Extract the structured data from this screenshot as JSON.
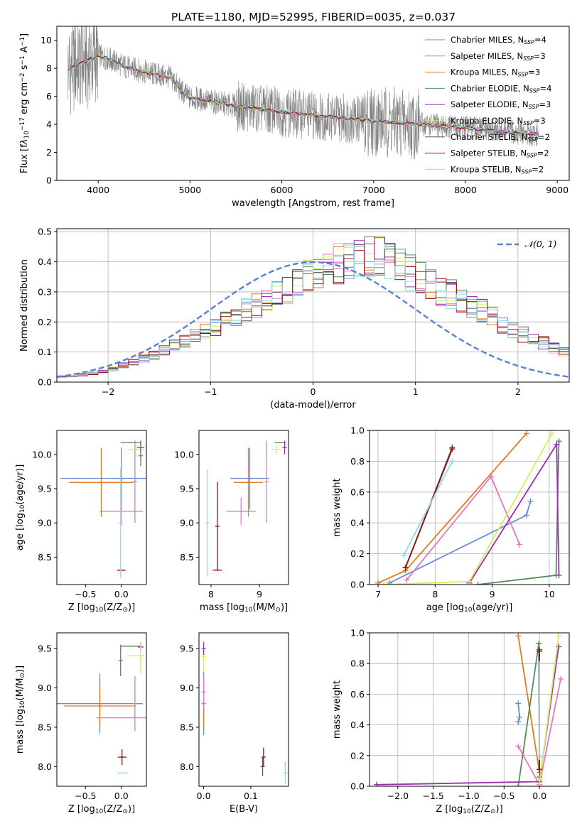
{
  "title": "PLATE=1180, MJD=52995, FIBERID=0035, z=0.037",
  "colors": {
    "spectrum": "#808080",
    "Chabrier MILES": "#6a8cd9",
    "Salpeter MILES": "#e377c2",
    "Kroupa MILES": "#e07b23",
    "Chabrier ELODIE": "#5a8a5a",
    "Salpeter ELODIE": "#9b30b3",
    "Kroupa ELODIE": "#d4ee5e",
    "Chabrier STELIB": "#555555",
    "Salpeter STELIB": "#9a1010",
    "Kroupa STELIB": "#8ddde6",
    "normal": "#5b7fd6",
    "grid": "#b0b0b0"
  },
  "chart_data": [
    {
      "type": "line",
      "title": "PLATE=1180, MJD=52995, FIBERID=0035, z=0.037",
      "xlabel": "wavelength [Angstrom, rest frame]",
      "ylabel_parts": [
        "Flux [",
        "f",
        "λ",
        "10",
        "−17",
        " erg cm",
        "−2",
        " s",
        "−1",
        " A",
        "−1",
        "]"
      ],
      "xlim": [
        3550,
        9130
      ],
      "ylim": [
        0,
        11
      ],
      "xticks": [
        4000,
        5000,
        6000,
        7000,
        8000,
        9000
      ],
      "xtick_labels": [
        "4000",
        "5000",
        "6000",
        "7000",
        "8000",
        "9000"
      ],
      "yticks": [
        0,
        2,
        4,
        6,
        8,
        10
      ],
      "ytick_labels": [
        "0",
        "2",
        "4",
        "6",
        "8",
        "10"
      ],
      "continuum_model": {
        "x": [
          3670,
          3900,
          4000,
          4100,
          4300,
          4600,
          4800,
          4900,
          5000,
          5500,
          6000,
          6500,
          7000,
          7500,
          8000,
          8500,
          8800
        ],
        "y": [
          8.0,
          8.6,
          8.9,
          8.7,
          8.1,
          7.6,
          7.3,
          6.4,
          5.9,
          5.3,
          4.9,
          4.55,
          4.25,
          4.0,
          3.75,
          3.45,
          3.3
        ]
      },
      "legend": [
        {
          "base": "Chabrier MILES, N",
          "sub": "SSP",
          "tail": "=4"
        },
        {
          "base": "Salpeter MILES, N",
          "sub": "SSP",
          "tail": "=3"
        },
        {
          "base": "Kroupa MILES, N",
          "sub": "SSP",
          "tail": "=3"
        },
        {
          "base": "Chabrier ELODIE, N",
          "sub": "SSP",
          "tail": "=4"
        },
        {
          "base": "Salpeter ELODIE, N",
          "sub": "SSP",
          "tail": "=3"
        },
        {
          "base": "Kroupa ELODIE, N",
          "sub": "SSP",
          "tail": "=3"
        },
        {
          "base": "Chabrier STELIB, N",
          "sub": "SSP",
          "tail": "=2"
        },
        {
          "base": "Salpeter STELIB, N",
          "sub": "SSP",
          "tail": "=2"
        },
        {
          "base": "Kroupa STELIB, N",
          "sub": "SSP",
          "tail": "=2"
        }
      ],
      "legend_placement": "upper right"
    },
    {
      "type": "step",
      "xlabel": "(data-model)/error",
      "ylabel": "Normed distribution",
      "xlim": [
        -2.5,
        2.5
      ],
      "ylim": [
        0,
        0.51
      ],
      "xticks": [
        -2,
        -1,
        0,
        1,
        2
      ],
      "xtick_labels": [
        "−2",
        "−1",
        "0",
        "1",
        "2"
      ],
      "yticks": [
        0,
        0.1,
        0.2,
        0.3,
        0.4,
        0.5
      ],
      "ytick_labels": [
        "0.0",
        "0.1",
        "0.2",
        "0.3",
        "0.4",
        "0.5"
      ],
      "grid": true,
      "bin_width": 0.1,
      "histogram_base": [
        0.018,
        0.02,
        0.025,
        0.03,
        0.035,
        0.045,
        0.055,
        0.065,
        0.08,
        0.09,
        0.105,
        0.12,
        0.135,
        0.15,
        0.165,
        0.18,
        0.2,
        0.22,
        0.24,
        0.255,
        0.27,
        0.285,
        0.305,
        0.325,
        0.345,
        0.36,
        0.38,
        0.395,
        0.41,
        0.42,
        0.42,
        0.41,
        0.395,
        0.38,
        0.36,
        0.345,
        0.325,
        0.305,
        0.29,
        0.27,
        0.255,
        0.235,
        0.215,
        0.195,
        0.175,
        0.16,
        0.145,
        0.13,
        0.115,
        0.1,
        0.085,
        0.075,
        0.065,
        0.055,
        0.048,
        0.04,
        0.035,
        0.03,
        0.026,
        0.022
      ],
      "normal_curve": {
        "label": "𝒩(0, 1)",
        "mu": 0,
        "sigma": 1
      },
      "legend_placement": "upper right"
    },
    {
      "type": "errorbar",
      "xlabel_parts": [
        "Z [log",
        "10",
        "(Z/Z",
        "⊙",
        ")]"
      ],
      "ylabel_parts": [
        "age  [log",
        "10",
        "(age/yr)]"
      ],
      "xlim": [
        -0.9,
        0.35
      ],
      "ylim": [
        8.1,
        10.35
      ],
      "xticks": [
        -0.5,
        0.0
      ],
      "xtick_labels": [
        "−0.5",
        "0.0"
      ],
      "yticks": [
        8.5,
        9.0,
        9.5,
        10.0
      ],
      "ytick_labels": [
        "8.5",
        "9.0",
        "9.5",
        "10.0"
      ],
      "points": [
        {
          "series": "Chabrier MILES",
          "x": 0.0,
          "y": 9.65,
          "xerr": 0.85,
          "yerr": 0.45
        },
        {
          "series": "Kroupa MILES",
          "x": -0.28,
          "y": 9.59,
          "xerr": 0.45,
          "yerr": 0.5
        },
        {
          "series": "Salpeter MILES",
          "x": 0.0,
          "y": 9.17,
          "xerr": 0.3,
          "yerr": 0.2
        },
        {
          "series": "Salpeter MILES",
          "x": 0.19,
          "y": 9.6,
          "xerr": 0.0,
          "yerr": 0.6
        },
        {
          "series": "Chabrier STELIB",
          "x": 0.0,
          "y": 8.31,
          "xerr": 0.05,
          "yerr": 0.0
        },
        {
          "series": "Salpeter STELIB",
          "x": 0.0,
          "y": 8.31,
          "xerr": 0.06,
          "yerr": 0.0
        },
        {
          "series": "Kroupa STELIB",
          "x": -0.01,
          "y": 9.0,
          "xerr": 0.0,
          "yerr": 0.8
        },
        {
          "series": "Chabrier ELODIE",
          "x": 0.13,
          "y": 10.17,
          "xerr": 0.14,
          "yerr": 0.0
        },
        {
          "series": "Salpeter ELODIE",
          "x": 0.27,
          "y": 10.1,
          "xerr": 0.05,
          "yerr": 0.1
        },
        {
          "series": "Kroupa ELODIE",
          "x": 0.2,
          "y": 10.07,
          "xerr": 0.12,
          "yerr": 0.07
        },
        {
          "series": "Chabrier ELODIE",
          "x": 0.27,
          "y": 9.98,
          "xerr": 0.0,
          "yerr": 0.15
        }
      ]
    },
    {
      "type": "errorbar",
      "xlabel_parts": [
        "mass [log",
        "10",
        "(M/M",
        "⊙",
        ")]"
      ],
      "xlim": [
        7.75,
        9.6
      ],
      "ylim": [
        8.1,
        10.35
      ],
      "xticks": [
        8,
        9
      ],
      "xtick_labels": [
        "8",
        "9"
      ],
      "yticks": [
        8.5,
        9.0,
        9.5,
        10.0
      ],
      "ytick_labels": [
        "8.5",
        "9.0",
        "9.5",
        "10.0"
      ],
      "points": [
        {
          "series": "Chabrier MILES",
          "x": 8.8,
          "y": 9.65,
          "xerr": 0.4,
          "yerr": 0.45
        },
        {
          "series": "Kroupa MILES",
          "x": 8.77,
          "y": 9.59,
          "xerr": 0.3,
          "yerr": 0.5
        },
        {
          "series": "Salpeter MILES",
          "x": 8.62,
          "y": 9.17,
          "xerr": 0.3,
          "yerr": 0.2
        },
        {
          "series": "Salpeter MILES",
          "x": 9.15,
          "y": 9.6,
          "xerr": 0.0,
          "yerr": 0.6
        },
        {
          "series": "Salpeter STELIB",
          "x": 8.13,
          "y": 8.31,
          "xerr": 0.1,
          "yerr": 0.0
        },
        {
          "series": "Salpeter STELIB",
          "x": 8.13,
          "y": 8.95,
          "xerr": 0.0,
          "yerr": 0.65
        },
        {
          "series": "Kroupa STELIB",
          "x": 7.92,
          "y": 9.0,
          "xerr": 0.0,
          "yerr": 0.78
        },
        {
          "series": "Chabrier ELODIE",
          "x": 9.43,
          "y": 10.17,
          "xerr": 0.12,
          "yerr": 0.0
        },
        {
          "series": "Salpeter ELODIE",
          "x": 9.52,
          "y": 10.1,
          "xerr": 0.04,
          "yerr": 0.1
        },
        {
          "series": "Kroupa ELODIE",
          "x": 9.35,
          "y": 10.07,
          "xerr": 0.1,
          "yerr": 0.07
        }
      ]
    },
    {
      "type": "line",
      "xlabel_parts": [
        "age  [log",
        "10",
        "(age/yr)]"
      ],
      "ylabel": "mass weight",
      "xlim": [
        6.85,
        10.35
      ],
      "ylim": [
        0,
        1
      ],
      "xticks": [
        7,
        8,
        9,
        10
      ],
      "xtick_labels": [
        "7",
        "8",
        "9",
        "10"
      ],
      "yticks": [
        0,
        0.2,
        0.4,
        0.6,
        0.8,
        1.0
      ],
      "ytick_labels": [
        "0.0",
        "0.2",
        "0.4",
        "0.6",
        "0.8",
        "1.0"
      ],
      "grid": true,
      "series": [
        {
          "name": "Chabrier MILES",
          "x": [
            7.2,
            9.6,
            9.67
          ],
          "y": [
            0.01,
            0.45,
            0.54
          ]
        },
        {
          "name": "Salpeter MILES",
          "x": [
            7.5,
            8.98,
            9.48
          ],
          "y": [
            0.03,
            0.7,
            0.26
          ]
        },
        {
          "name": "Kroupa MILES",
          "x": [
            7.0,
            7.48,
            9.6
          ],
          "y": [
            0.01,
            0.09,
            0.98
          ]
        },
        {
          "name": "Chabrier ELODIE",
          "x": [
            8.75,
            10.12,
            10.17
          ],
          "y": [
            0.0,
            0.06,
            0.93
          ]
        },
        {
          "name": "Salpeter ELODIE",
          "x": [
            8.6,
            10.13,
            10.17
          ],
          "y": [
            0.01,
            0.91,
            0.06
          ]
        },
        {
          "name": "Kroupa ELODIE",
          "x": [
            7.1,
            8.6,
            10.05
          ],
          "y": [
            0.0,
            0.02,
            0.98
          ]
        },
        {
          "name": "Chabrier STELIB",
          "x": [
            7.48,
            8.3
          ],
          "y": [
            0.11,
            0.89
          ]
        },
        {
          "name": "Salpeter STELIB",
          "x": [
            7.48,
            8.3
          ],
          "y": [
            0.11,
            0.88
          ]
        },
        {
          "name": "Kroupa STELIB",
          "x": [
            7.45,
            8.3
          ],
          "y": [
            0.19,
            0.8
          ]
        }
      ]
    },
    {
      "type": "errorbar",
      "xlabel_parts": [
        "Z [log",
        "10",
        "(Z/Z",
        "⊙",
        ")]"
      ],
      "ylabel_parts": [
        "mass [log",
        "10",
        "(M/M",
        "⊙",
        ")]"
      ],
      "xlim": [
        -0.9,
        0.35
      ],
      "ylim": [
        7.75,
        9.7
      ],
      "xticks": [
        -0.5,
        0.0
      ],
      "xtick_labels": [
        "−0.5",
        "0.0"
      ],
      "yticks": [
        8.0,
        8.5,
        9.0,
        9.5
      ],
      "ytick_labels": [
        "8.0",
        "8.5",
        "9.0",
        "9.5"
      ],
      "points": [
        {
          "series": "Chabrier MILES",
          "x": -0.3,
          "y": 8.8,
          "xerr": 0.6,
          "yerr": 0.38
        },
        {
          "series": "Kroupa MILES",
          "x": -0.3,
          "y": 8.77,
          "xerr": 0.5,
          "yerr": 0.25
        },
        {
          "series": "Salpeter MILES",
          "x": 0.0,
          "y": 8.62,
          "xerr": 0.35,
          "yerr": 0.0
        },
        {
          "series": "Salpeter MILES",
          "x": 0.19,
          "y": 8.8,
          "xerr": 0.0,
          "yerr": 0.35
        },
        {
          "series": "Salpeter STELIB",
          "x": 0.01,
          "y": 8.12,
          "xerr": 0.06,
          "yerr": 0.1
        },
        {
          "series": "Kroupa STELIB",
          "x": 0.02,
          "y": 7.92,
          "xerr": 0.07,
          "yerr": 0.0
        },
        {
          "series": "Chabrier ELODIE",
          "x": 0.13,
          "y": 9.53,
          "xerr": 0.14,
          "yerr": 0.0
        },
        {
          "series": "Chabrier ELODIE",
          "x": -0.01,
          "y": 9.35,
          "xerr": 0.0,
          "yerr": 0.2
        },
        {
          "series": "Salpeter ELODIE",
          "x": 0.27,
          "y": 9.52,
          "xerr": 0.04,
          "yerr": 0.06
        },
        {
          "series": "Kroupa ELODIE",
          "x": 0.2,
          "y": 9.41,
          "xerr": 0.12,
          "yerr": 0.0
        },
        {
          "series": "Kroupa ELODIE",
          "x": 0.27,
          "y": 9.38,
          "xerr": 0.0,
          "yerr": 0.2
        }
      ]
    },
    {
      "type": "errorbar",
      "xlabel": "E(B-V)",
      "xlim": [
        -0.01,
        0.18
      ],
      "ylim": [
        7.75,
        9.7
      ],
      "xticks": [
        0.0,
        0.1
      ],
      "xtick_labels": [
        "0.0",
        "0.1"
      ],
      "yticks": [
        8.0,
        8.5,
        9.0,
        9.5
      ],
      "ytick_labels": [
        "8.0",
        "8.5",
        "9.0",
        "9.5"
      ],
      "points": [
        {
          "series": "Chabrier MILES",
          "x": 0.0,
          "y": 8.8,
          "xerr": 0.0,
          "yerr": 0.4
        },
        {
          "series": "Kroupa MILES",
          "x": 0.0,
          "y": 8.8,
          "xerr": 0.0,
          "yerr": 0.3
        },
        {
          "series": "Salpeter MILES",
          "x": 0.0,
          "y": 8.95,
          "xerr": 0.0,
          "yerr": 0.2
        },
        {
          "series": "Kroupa ELODIE",
          "x": 0.0,
          "y": 9.4,
          "xerr": 0.0,
          "yerr": 0.2
        },
        {
          "series": "Salpeter ELODIE",
          "x": 0.0,
          "y": 9.5,
          "xerr": 0.0,
          "yerr": 0.08
        },
        {
          "series": "Salpeter STELIB",
          "x": 0.127,
          "y": 8.12,
          "xerr": 0.0,
          "yerr": 0.12
        },
        {
          "series": "Chabrier STELIB",
          "x": 0.125,
          "y": 8.0,
          "xerr": 0.0,
          "yerr": 0.12
        },
        {
          "series": "Kroupa STELIB",
          "x": 0.173,
          "y": 7.92,
          "xerr": 0.0,
          "yerr": 0.14
        }
      ]
    },
    {
      "type": "line",
      "xlabel_parts": [
        "Z [log",
        "10",
        "(Z/Z",
        "⊙",
        ")]"
      ],
      "ylabel": "mass weight",
      "xlim": [
        -2.4,
        0.42
      ],
      "ylim": [
        0,
        1
      ],
      "xticks": [
        -2.0,
        -1.5,
        -1.0,
        -0.5,
        0.0
      ],
      "xtick_labels": [
        "−2.0",
        "−1.5",
        "−1.0",
        "−0.5",
        "0.0"
      ],
      "yticks": [
        0,
        0.2,
        0.4,
        0.6,
        0.8,
        1.0
      ],
      "ytick_labels": [
        "0.0",
        "0.2",
        "0.4",
        "0.6",
        "0.8",
        "1.0"
      ],
      "grid": true,
      "series": [
        {
          "name": "Chabrier MILES",
          "x": [
            -0.3,
            -0.28,
            -0.3
          ],
          "y": [
            0.54,
            0.45,
            0.42
          ]
        },
        {
          "name": "Salpeter MILES",
          "x": [
            -0.3,
            0.0,
            0.3
          ],
          "y": [
            0.26,
            0.01,
            0.7
          ]
        },
        {
          "name": "Kroupa MILES",
          "x": [
            -0.3,
            0.0
          ],
          "y": [
            0.98,
            0.09
          ]
        },
        {
          "name": "Chabrier ELODIE",
          "x": [
            -0.3,
            -0.01,
            0.0
          ],
          "y": [
            0.0,
            0.93,
            0.06
          ]
        },
        {
          "name": "Salpeter ELODIE",
          "x": [
            -2.3,
            0.0,
            0.27
          ],
          "y": [
            0.01,
            0.03,
            0.91
          ]
        },
        {
          "name": "Kroupa ELODIE",
          "x": [
            0.0,
            0.0,
            0.27
          ],
          "y": [
            0.0,
            0.02,
            0.98
          ]
        },
        {
          "name": "Chabrier STELIB",
          "x": [
            0.0,
            0.0
          ],
          "y": [
            0.11,
            0.89
          ]
        },
        {
          "name": "Salpeter STELIB",
          "x": [
            0.0,
            0.0
          ],
          "y": [
            0.11,
            0.88
          ]
        },
        {
          "name": "Kroupa STELIB",
          "x": [
            0.0,
            0.0
          ],
          "y": [
            0.19,
            0.8
          ]
        }
      ]
    }
  ]
}
